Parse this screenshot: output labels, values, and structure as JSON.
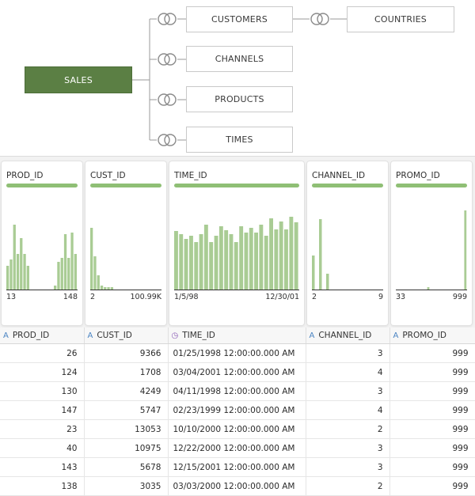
{
  "diagram": {
    "fact": "SALES",
    "dimensions": [
      "CUSTOMERS",
      "CHANNELS",
      "PRODUCTS",
      "TIMES"
    ],
    "sub_dimension": "COUNTRIES",
    "join_icon": "join-circles-icon"
  },
  "profiles": [
    {
      "name": "PROD_ID",
      "min": "13",
      "max": "148",
      "bars": [
        0.3,
        0.38,
        0.82,
        0.45,
        0.65,
        0.45,
        0.3,
        0,
        0,
        0,
        0,
        0,
        0,
        0,
        0.05,
        0.35,
        0.4,
        0.7,
        0.4,
        0.72,
        0.45
      ]
    },
    {
      "name": "CUST_ID",
      "min": "2",
      "max": "100.99K",
      "bars": [
        0.78,
        0.42,
        0.18,
        0.05,
        0.03,
        0.03,
        0.03,
        0,
        0,
        0,
        0,
        0,
        0,
        0,
        0,
        0,
        0,
        0,
        0,
        0,
        0
      ]
    },
    {
      "name": "TIME_ID",
      "min": "1/5/98",
      "max": "12/30/01",
      "bars": [
        0.74,
        0.7,
        0.64,
        0.68,
        0.6,
        0.7,
        0.82,
        0.6,
        0.68,
        0.8,
        0.75,
        0.7,
        0.6,
        0.8,
        0.72,
        0.78,
        0.72,
        0.82,
        0.68,
        0.9,
        0.76,
        0.86,
        0.76,
        0.92,
        0.85
      ]
    },
    {
      "name": "CHANNEL_ID",
      "min": "2",
      "max": "9",
      "bars": [
        0.43,
        0,
        0.89,
        0,
        0.2,
        0,
        0,
        0,
        0,
        0,
        0,
        0,
        0,
        0,
        0,
        0,
        0,
        0,
        0,
        0
      ]
    },
    {
      "name": "PROMO_ID",
      "min": "33",
      "max": "999",
      "bars": [
        0,
        0,
        0,
        0,
        0,
        0,
        0,
        0,
        0,
        0,
        0,
        0.03,
        0,
        0,
        0,
        0,
        0,
        0,
        0,
        0,
        0,
        0,
        0,
        0,
        1.0
      ]
    }
  ],
  "columns": [
    {
      "name": "PROD_ID",
      "type_icon": "text-type-icon",
      "glyph": "A"
    },
    {
      "name": "CUST_ID",
      "type_icon": "text-type-icon",
      "glyph": "A"
    },
    {
      "name": "TIME_ID",
      "type_icon": "clock-icon",
      "glyph": "◷"
    },
    {
      "name": "CHANNEL_ID",
      "type_icon": "text-type-icon",
      "glyph": "A"
    },
    {
      "name": "PROMO_ID",
      "type_icon": "text-type-icon",
      "glyph": "A"
    }
  ],
  "rows": [
    [
      "26",
      "9366",
      "01/25/1998 12:00:00.000 AM",
      "3",
      "999"
    ],
    [
      "124",
      "1708",
      "03/04/2001 12:00:00.000 AM",
      "4",
      "999"
    ],
    [
      "130",
      "4249",
      "04/11/1998 12:00:00.000 AM",
      "3",
      "999"
    ],
    [
      "147",
      "5747",
      "02/23/1999 12:00:00.000 AM",
      "4",
      "999"
    ],
    [
      "23",
      "13053",
      "10/10/2000 12:00:00.000 AM",
      "2",
      "999"
    ],
    [
      "40",
      "10975",
      "12/22/2000 12:00:00.000 AM",
      "3",
      "999"
    ],
    [
      "143",
      "5678",
      "12/15/2001 12:00:00.000 AM",
      "3",
      "999"
    ],
    [
      "138",
      "3035",
      "03/03/2000 12:00:00.000 AM",
      "2",
      "999"
    ]
  ],
  "colors": {
    "fact_node": "#5b7f44",
    "histogram_bar": "#a9cc94",
    "quality_bar": "#8fbf75",
    "connector": "#9a9a9a"
  }
}
